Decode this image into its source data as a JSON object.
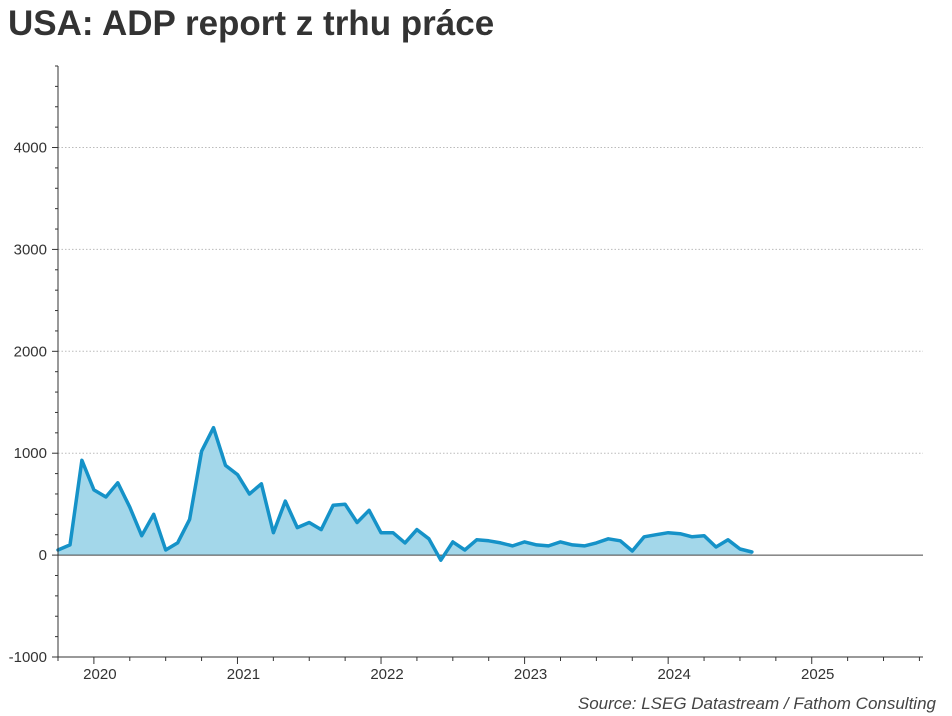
{
  "title": "USA: ADP report z trhu práce",
  "source": "Source: LSEG Datastream / Fathom Consulting",
  "chart_data": {
    "type": "area",
    "title": "USA: ADP report z trhu práce",
    "xlabel": "",
    "ylabel": "",
    "ylim": [
      -1000,
      4800
    ],
    "xlim": [
      "2019-10-01",
      "2025-10-01"
    ],
    "yticks": [
      -1000,
      0,
      1000,
      2000,
      3000,
      4000
    ],
    "xticks": [
      "2020",
      "2021",
      "2022",
      "2023",
      "2024",
      "2025"
    ],
    "grid": true,
    "legend": "none",
    "colors": {
      "line": "#1592c8",
      "fill": "#a3d7ea",
      "grid": "#bbbbbb",
      "axis": "#333333"
    },
    "series": [
      {
        "x": [
          "2019-10",
          "2019-11",
          "2019-12",
          "2020-01",
          "2020-02",
          "2020-03",
          "2020-04",
          "2020-05",
          "2020-06",
          "2020-07",
          "2020-08",
          "2020-09",
          "2020-10",
          "2020-11",
          "2020-12",
          "2021-01",
          "2021-02",
          "2021-03",
          "2021-04",
          "2021-05",
          "2021-06",
          "2021-07",
          "2021-08",
          "2021-09",
          "2021-10",
          "2021-11",
          "2021-12",
          "2022-01",
          "2022-02",
          "2022-03",
          "2022-04",
          "2022-05",
          "2022-06",
          "2022-07",
          "2022-08",
          "2022-09",
          "2022-10",
          "2022-11",
          "2022-12",
          "2023-01",
          "2023-02",
          "2023-03",
          "2023-04",
          "2023-05",
          "2023-06",
          "2023-07",
          "2023-08",
          "2023-09",
          "2023-10",
          "2023-11",
          "2023-12",
          "2024-01",
          "2024-02",
          "2024-03",
          "2024-04",
          "2024-05",
          "2024-06",
          "2024-07",
          "2024-08",
          "2024-09",
          "2024-10",
          "2024-11",
          "2024-12",
          "2025-01",
          "2025-02",
          "2025-03",
          "2025-04"
        ],
        "values": [
          50,
          100,
          930,
          640,
          570,
          710,
          470,
          190,
          400,
          50,
          120,
          350,
          1020,
          1250,
          880,
          790,
          600,
          700,
          220,
          530,
          270,
          320,
          250,
          490,
          500,
          320,
          440,
          220,
          220,
          120,
          250,
          160,
          -50,
          130,
          50,
          150,
          140,
          120,
          90,
          130,
          100,
          90,
          130,
          100,
          90,
          120,
          160,
          140,
          40,
          180,
          200,
          220,
          210,
          180,
          190,
          80,
          150,
          60,
          30,
          null,
          null,
          null,
          null,
          null,
          null,
          null,
          null
        ]
      }
    ]
  }
}
